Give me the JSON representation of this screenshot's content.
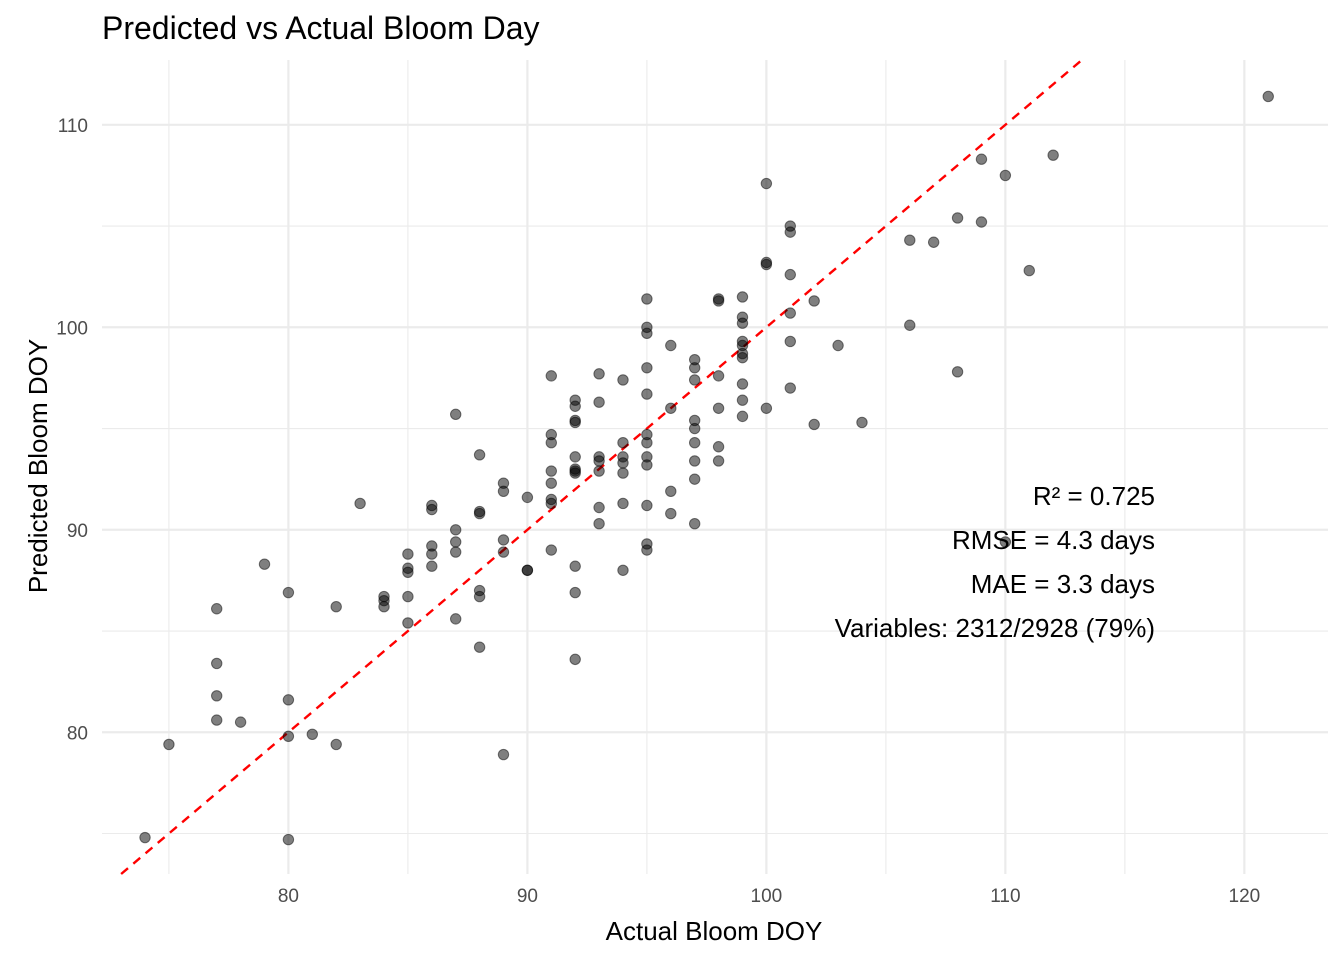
{
  "chart_data": {
    "type": "scatter",
    "title": "Predicted vs Actual Bloom Day",
    "xlabel": "Actual Bloom DOY",
    "ylabel": "Predicted Bloom DOY",
    "xlim": [
      72.2,
      123.5
    ],
    "ylim": [
      73.0,
      113.2
    ],
    "x_ticks": [
      80,
      90,
      100,
      110,
      120
    ],
    "y_ticks": [
      80,
      90,
      100,
      110
    ],
    "grid": true,
    "reference_line": {
      "slope": 1,
      "intercept": 0,
      "style": "dashed",
      "color": "#ff0000"
    },
    "point_color": "#000000",
    "point_alpha": 0.5,
    "annotations": [
      "R² = 0.725",
      "RMSE = 4.3 days",
      "MAE = 3.3 days",
      "Variables: 2312/2928 (79%)"
    ],
    "points": [
      [
        74,
        74.8
      ],
      [
        75,
        79.4
      ],
      [
        77,
        86.1
      ],
      [
        77,
        83.4
      ],
      [
        77,
        81.8
      ],
      [
        77,
        80.6
      ],
      [
        78,
        80.5
      ],
      [
        79,
        88.3
      ],
      [
        80,
        86.9
      ],
      [
        80,
        81.6
      ],
      [
        80,
        79.8
      ],
      [
        80,
        74.7
      ],
      [
        81,
        79.9
      ],
      [
        82,
        86.2
      ],
      [
        82,
        79.4
      ],
      [
        83,
        91.3
      ],
      [
        84,
        86.7
      ],
      [
        84,
        86.5
      ],
      [
        84,
        86.2
      ],
      [
        85,
        88.8
      ],
      [
        85,
        88.1
      ],
      [
        85,
        87.9
      ],
      [
        85,
        86.7
      ],
      [
        85,
        85.4
      ],
      [
        86,
        91.2
      ],
      [
        86,
        91.0
      ],
      [
        86,
        89.2
      ],
      [
        86,
        88.8
      ],
      [
        86,
        88.2
      ],
      [
        87,
        95.7
      ],
      [
        87,
        90.0
      ],
      [
        87,
        89.4
      ],
      [
        87,
        88.9
      ],
      [
        87,
        85.6
      ],
      [
        88,
        93.7
      ],
      [
        88,
        90.9
      ],
      [
        88,
        90.8
      ],
      [
        88,
        87.0
      ],
      [
        88,
        86.7
      ],
      [
        88,
        84.2
      ],
      [
        89,
        92.3
      ],
      [
        89,
        91.9
      ],
      [
        89,
        89.5
      ],
      [
        89,
        88.9
      ],
      [
        89,
        78.9
      ],
      [
        90,
        91.6
      ],
      [
        90,
        88.0
      ],
      [
        90,
        88.0
      ],
      [
        91,
        97.6
      ],
      [
        91,
        94.7
      ],
      [
        91,
        94.3
      ],
      [
        91,
        92.9
      ],
      [
        91,
        92.3
      ],
      [
        91,
        91.5
      ],
      [
        91,
        91.3
      ],
      [
        91,
        89.0
      ],
      [
        92,
        96.4
      ],
      [
        92,
        96.1
      ],
      [
        92,
        95.4
      ],
      [
        92,
        95.3
      ],
      [
        92,
        93.6
      ],
      [
        92,
        93.0
      ],
      [
        92,
        92.9
      ],
      [
        92,
        92.8
      ],
      [
        92,
        88.2
      ],
      [
        92,
        86.9
      ],
      [
        92,
        83.6
      ],
      [
        93,
        97.7
      ],
      [
        93,
        96.3
      ],
      [
        93,
        93.6
      ],
      [
        93,
        93.4
      ],
      [
        93,
        92.9
      ],
      [
        93,
        91.1
      ],
      [
        93,
        90.3
      ],
      [
        94,
        97.4
      ],
      [
        94,
        94.3
      ],
      [
        94,
        93.6
      ],
      [
        94,
        93.3
      ],
      [
        94,
        92.8
      ],
      [
        94,
        91.3
      ],
      [
        94,
        88.0
      ],
      [
        95,
        101.4
      ],
      [
        95,
        100.0
      ],
      [
        95,
        99.7
      ],
      [
        95,
        98.0
      ],
      [
        95,
        96.7
      ],
      [
        95,
        94.7
      ],
      [
        95,
        94.3
      ],
      [
        95,
        93.6
      ],
      [
        95,
        93.2
      ],
      [
        95,
        91.2
      ],
      [
        95,
        89.3
      ],
      [
        95,
        89.0
      ],
      [
        96,
        99.1
      ],
      [
        96,
        96.0
      ],
      [
        96,
        91.9
      ],
      [
        96,
        90.8
      ],
      [
        97,
        98.4
      ],
      [
        97,
        98.0
      ],
      [
        97,
        97.4
      ],
      [
        97,
        95.4
      ],
      [
        97,
        95.0
      ],
      [
        97,
        94.3
      ],
      [
        97,
        93.4
      ],
      [
        97,
        92.5
      ],
      [
        97,
        90.3
      ],
      [
        98,
        101.4
      ],
      [
        98,
        101.3
      ],
      [
        98,
        97.6
      ],
      [
        98,
        96.0
      ],
      [
        98,
        94.1
      ],
      [
        98,
        93.4
      ],
      [
        99,
        101.5
      ],
      [
        99,
        100.5
      ],
      [
        99,
        100.2
      ],
      [
        99,
        99.3
      ],
      [
        99,
        99.1
      ],
      [
        99,
        98.7
      ],
      [
        99,
        98.5
      ],
      [
        99,
        97.2
      ],
      [
        99,
        96.4
      ],
      [
        99,
        95.6
      ],
      [
        100,
        107.1
      ],
      [
        100,
        103.2
      ],
      [
        100,
        103.1
      ],
      [
        100,
        96.0
      ],
      [
        101,
        105.0
      ],
      [
        101,
        104.7
      ],
      [
        101,
        102.6
      ],
      [
        101,
        100.7
      ],
      [
        101,
        99.3
      ],
      [
        101,
        97.0
      ],
      [
        102,
        101.3
      ],
      [
        102,
        95.2
      ],
      [
        103,
        99.1
      ],
      [
        104,
        95.3
      ],
      [
        106,
        104.3
      ],
      [
        106,
        100.1
      ],
      [
        107,
        104.2
      ],
      [
        108,
        105.4
      ],
      [
        108,
        97.8
      ],
      [
        109,
        108.3
      ],
      [
        109,
        105.2
      ],
      [
        110,
        107.5
      ],
      [
        110,
        89.4
      ],
      [
        111,
        102.8
      ],
      [
        112,
        108.5
      ],
      [
        121,
        111.4
      ]
    ]
  }
}
